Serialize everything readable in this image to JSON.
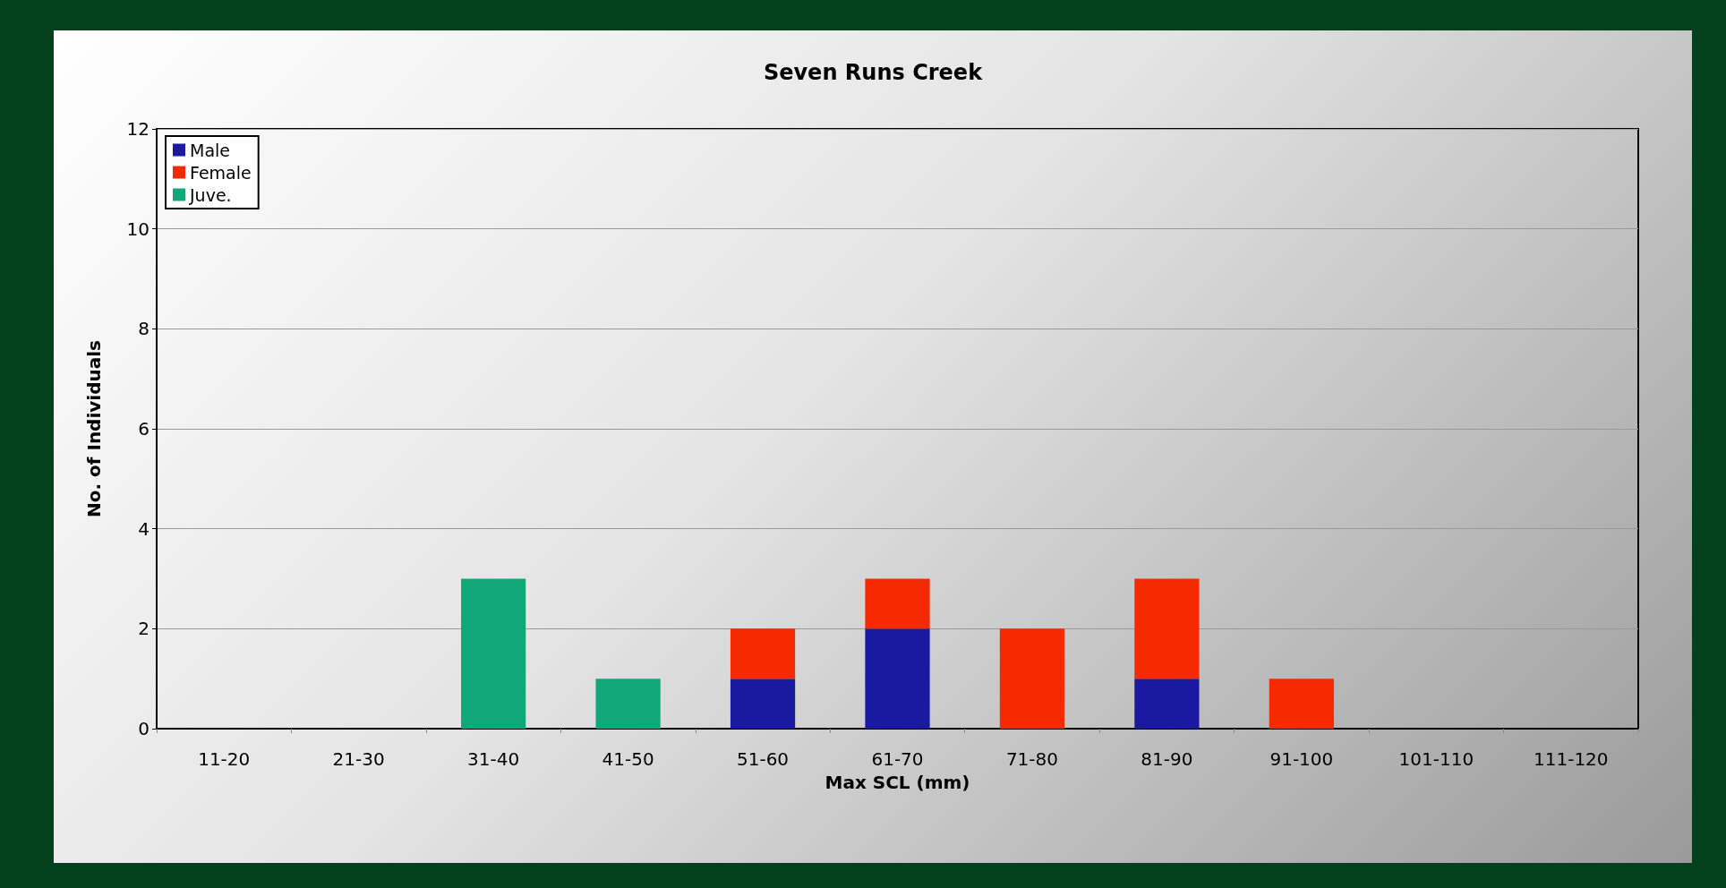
{
  "chart_data": {
    "type": "bar",
    "title": "Seven Runs Creek",
    "xlabel": "Max SCL (mm)",
    "ylabel": "No. of Individuals",
    "categories": [
      "11-20",
      "21-30",
      "31-40",
      "41-50",
      "51-60",
      "61-70",
      "71-80",
      "81-90",
      "91-100",
      "101-110",
      "111-120"
    ],
    "series": [
      {
        "name": "Male",
        "color": "#1a1aa0",
        "values": [
          0,
          0,
          0,
          0,
          1,
          2,
          0,
          1,
          0,
          0,
          0
        ]
      },
      {
        "name": "Female",
        "color": "#f52a00",
        "values": [
          0,
          0,
          0,
          0,
          1,
          1,
          2,
          2,
          1,
          0,
          0
        ]
      },
      {
        "name": "Juve.",
        "color": "#10a878",
        "values": [
          0,
          0,
          3,
          1,
          0,
          0,
          0,
          0,
          0,
          0,
          0
        ]
      }
    ],
    "stacked": true,
    "ylim": [
      0,
      12
    ],
    "yticks": [
      0,
      2,
      4,
      6,
      8,
      10,
      12
    ],
    "grid": "y",
    "legend": "top left"
  }
}
